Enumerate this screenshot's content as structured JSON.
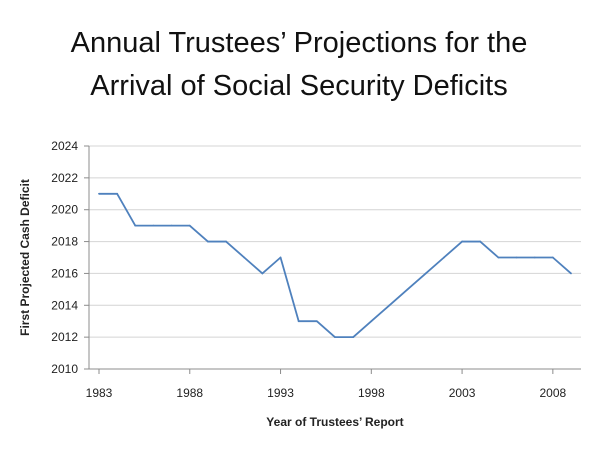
{
  "chart_data": {
    "type": "line",
    "title_lines": [
      "Annual Trustees’ Projections for the",
      "Arrival of Social Security Deficits"
    ],
    "xlabel": "Year of Trustees’ Report",
    "ylabel": "First Projected Cash Deficit",
    "xlim": [
      1983,
      2009
    ],
    "ylim": [
      2010,
      2024
    ],
    "x_ticks": [
      1983,
      1988,
      1993,
      1998,
      2003,
      2008
    ],
    "y_ticks": [
      2010,
      2012,
      2014,
      2016,
      2018,
      2020,
      2022,
      2024
    ],
    "grid": "horizontal",
    "legend": "none",
    "series": [
      {
        "color": "#4f81bd",
        "x": [
          1983,
          1984,
          1985,
          1986,
          1987,
          1988,
          1989,
          1990,
          1991,
          1992,
          1993,
          1994,
          1995,
          1996,
          1997,
          1998,
          1999,
          2000,
          2001,
          2002,
          2003,
          2004,
          2005,
          2006,
          2007,
          2008,
          2009
        ],
        "y": [
          2021,
          2021,
          2019,
          2019,
          2019,
          2019,
          2018,
          2018,
          2017,
          2016,
          2017,
          2013,
          2013,
          2012,
          2012,
          2013,
          2014,
          2015,
          2016,
          2017,
          2018,
          2018,
          2017,
          2017,
          2017,
          2017,
          2016
        ]
      }
    ]
  }
}
